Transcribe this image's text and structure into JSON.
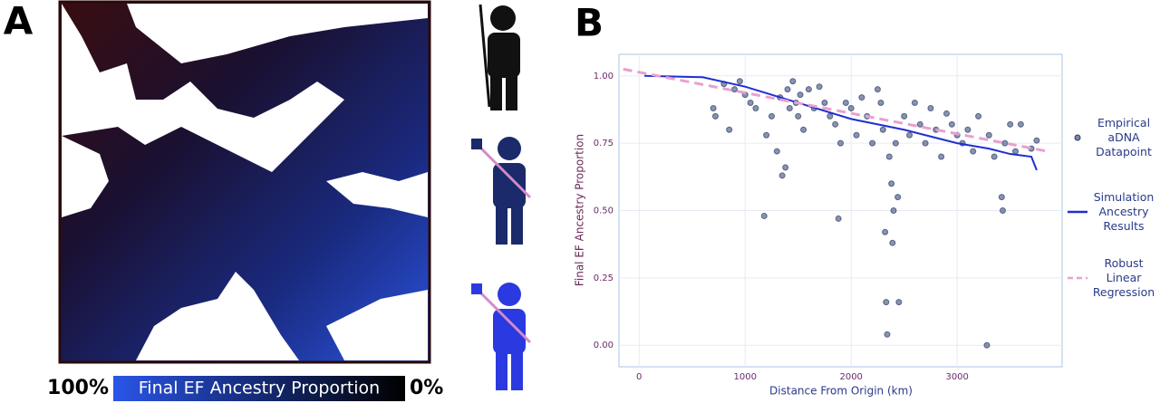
{
  "panel_a": {
    "label": "A",
    "colorbar_title": "Final EF Ancestry Proportion",
    "colorbar_left": "100%",
    "colorbar_right": "0%"
  },
  "chart_data": {
    "type": "scatter",
    "panel_label": "B",
    "xlabel": "Distance From Origin (km)",
    "ylabel": "Final EF Ancestry Proportion",
    "xlim": [
      -190,
      3990
    ],
    "ylim": [
      -0.08,
      1.08
    ],
    "xticks": [
      0,
      1000,
      2000,
      3000
    ],
    "yticks": [
      {
        "value": 0,
        "label": "0.00"
      },
      0.25,
      {
        "value": 0.5,
        "label": "0.50"
      },
      0.75,
      {
        "value": 1,
        "label": "1.00"
      }
    ],
    "grid": true,
    "series": [
      {
        "name": "Empirical aDNA Datapoint",
        "kind": "points",
        "color": "#2a3a6a",
        "x": [
          700,
          720,
          800,
          850,
          900,
          950,
          1000,
          1050,
          1100,
          1180,
          1200,
          1250,
          1300,
          1330,
          1350,
          1380,
          1400,
          1420,
          1450,
          1480,
          1500,
          1520,
          1550,
          1600,
          1650,
          1700,
          1750,
          1800,
          1850,
          1880,
          1900,
          1950,
          2000,
          2050,
          2100,
          2150,
          2200,
          2250,
          2280,
          2300,
          2320,
          2330,
          2340,
          2360,
          2380,
          2390,
          2400,
          2420,
          2440,
          2450,
          2500,
          2550,
          2600,
          2650,
          2700,
          2750,
          2800,
          2850,
          2900,
          2950,
          3000,
          3050,
          3100,
          3150,
          3200,
          3280,
          3300,
          3350,
          3420,
          3430,
          3450,
          3500,
          3550,
          3600,
          3700,
          3750
        ],
        "values": [
          0.88,
          0.85,
          0.97,
          0.8,
          0.95,
          0.98,
          0.93,
          0.9,
          0.88,
          0.48,
          0.78,
          0.85,
          0.72,
          0.92,
          0.63,
          0.66,
          0.95,
          0.88,
          0.98,
          0.9,
          0.85,
          0.93,
          0.8,
          0.95,
          0.88,
          0.96,
          0.9,
          0.85,
          0.82,
          0.47,
          0.75,
          0.9,
          0.88,
          0.78,
          0.92,
          0.85,
          0.75,
          0.95,
          0.9,
          0.8,
          0.42,
          0.16,
          0.04,
          0.7,
          0.6,
          0.38,
          0.5,
          0.75,
          0.55,
          0.16,
          0.85,
          0.78,
          0.9,
          0.82,
          0.75,
          0.88,
          0.8,
          0.7,
          0.86,
          0.82,
          0.78,
          0.75,
          0.8,
          0.72,
          0.85,
          0.0,
          0.78,
          0.7,
          0.55,
          0.5,
          0.75,
          0.82,
          0.72,
          0.82,
          0.73,
          0.76
        ]
      },
      {
        "name": "Simulation Ancestry Results",
        "kind": "line",
        "color": "#1f2fd0",
        "x": [
          50,
          600,
          1000,
          1500,
          2000,
          2500,
          3000,
          3300,
          3500,
          3700,
          3750
        ],
        "values": [
          1.0,
          0.995,
          0.96,
          0.9,
          0.84,
          0.8,
          0.75,
          0.73,
          0.71,
          0.7,
          0.65
        ]
      },
      {
        "name": "Robust Linear Regression",
        "kind": "dashed",
        "color": "#e8a0d0",
        "x": [
          -150,
          3850
        ],
        "values": [
          1.025,
          0.72
        ]
      }
    ]
  }
}
